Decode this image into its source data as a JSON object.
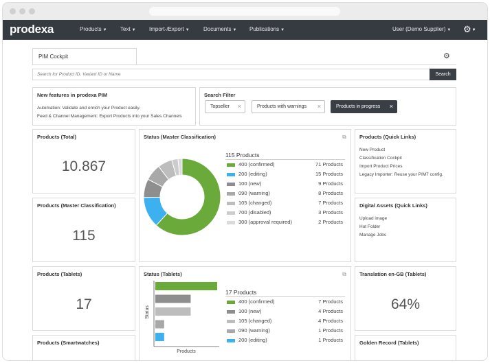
{
  "nav": {
    "logo": "prodexa",
    "menus": [
      {
        "label": "Products"
      },
      {
        "label": "Text"
      },
      {
        "label": "Import-/Export"
      },
      {
        "label": "Documents"
      },
      {
        "label": "Publications"
      }
    ],
    "user": "User (Demo Supplier)"
  },
  "tab": {
    "label": "PIM Cockpit"
  },
  "search": {
    "placeholder": "Search for Product ID, Variant ID or Name",
    "button": "Search"
  },
  "features": {
    "title": "New features in prodexa PIM",
    "lines": [
      "Automation: Validate and enrich your Product easily.",
      "Feed & Channel Management: Export Products into your Sales Channels"
    ]
  },
  "filter": {
    "title": "Search Filter",
    "chips": [
      {
        "label": "Topseller",
        "active": false
      },
      {
        "label": "Products with warnings",
        "active": false
      },
      {
        "label": "Products in progress",
        "active": true
      }
    ],
    "close": "×"
  },
  "cards": {
    "products_total": {
      "title": "Products (Total)",
      "value": "10.867"
    },
    "products_master": {
      "title": "Products (Master Classification)",
      "value": "115"
    },
    "products_tablets": {
      "title": "Products (Tablets)",
      "value": "17"
    },
    "products_smartwatches": {
      "title": "Products (Smartwatches)"
    },
    "translation": {
      "title": "Translation en-GB (Tablets)",
      "value": "64%"
    },
    "golden_record": {
      "title": "Golden Record (Tablets)"
    },
    "quick_links": {
      "title": "Products (Quick Links)",
      "links": [
        "New Product",
        "Classification Cockpit",
        "Import Product Prices",
        "Legacy Importer: Reuse your PIM7 config."
      ]
    },
    "digital_assets": {
      "title": "Digital Assets (Quick Links)",
      "links": [
        "Upload image",
        "Hot Folder",
        "Manage Jobs"
      ]
    }
  },
  "status_master": {
    "title": "Status (Master Classification)",
    "total_label": "115 Products",
    "items": [
      {
        "label": "400 (confirmed)",
        "count": "71 Products",
        "value": 71,
        "color": "#6aaa3a"
      },
      {
        "label": "200 (editing)",
        "count": "15 Products",
        "value": 15,
        "color": "#3db1f0"
      },
      {
        "label": "100 (new)",
        "count": "9 Products",
        "value": 9,
        "color": "#8e8e8e"
      },
      {
        "label": "090 (warning)",
        "count": "8 Products",
        "value": 8,
        "color": "#a8a8a8"
      },
      {
        "label": "105 (changed)",
        "count": "7 Products",
        "value": 7,
        "color": "#bdbdbd"
      },
      {
        "label": "700 (disabled)",
        "count": "3 Products",
        "value": 3,
        "color": "#cccccc"
      },
      {
        "label": "300 (approval required)",
        "count": "2 Products",
        "value": 2,
        "color": "#dadada"
      }
    ]
  },
  "status_tablets": {
    "title": "Status (Tablets)",
    "total_label": "17 Products",
    "y_label": "Status",
    "x_label": "Products",
    "items": [
      {
        "label": "400 (confirmed)",
        "count": "7 Products",
        "value": 7,
        "color": "#6aaa3a"
      },
      {
        "label": "100 (new)",
        "count": "4 Products",
        "value": 4,
        "color": "#8e8e8e"
      },
      {
        "label": "105 (changed)",
        "count": "4 Products",
        "value": 4,
        "color": "#bdbdbd"
      },
      {
        "label": "090 (warning)",
        "count": "1 Products",
        "value": 1,
        "color": "#a8a8a8"
      },
      {
        "label": "200 (editing)",
        "count": "1 Products",
        "value": 1,
        "color": "#3db1f0"
      }
    ]
  },
  "chart_data": [
    {
      "type": "pie",
      "title": "Status (Master Classification)",
      "categories": [
        "400 (confirmed)",
        "200 (editing)",
        "100 (new)",
        "090 (warning)",
        "105 (changed)",
        "700 (disabled)",
        "300 (approval required)"
      ],
      "values": [
        71,
        15,
        9,
        8,
        7,
        3,
        2
      ]
    },
    {
      "type": "bar",
      "orientation": "horizontal",
      "title": "Status (Tablets)",
      "categories": [
        "400 (confirmed)",
        "100 (new)",
        "105 (changed)",
        "090 (warning)",
        "200 (editing)"
      ],
      "values": [
        7,
        4,
        4,
        1,
        1
      ],
      "xlabel": "Products",
      "ylabel": "Status"
    }
  ]
}
